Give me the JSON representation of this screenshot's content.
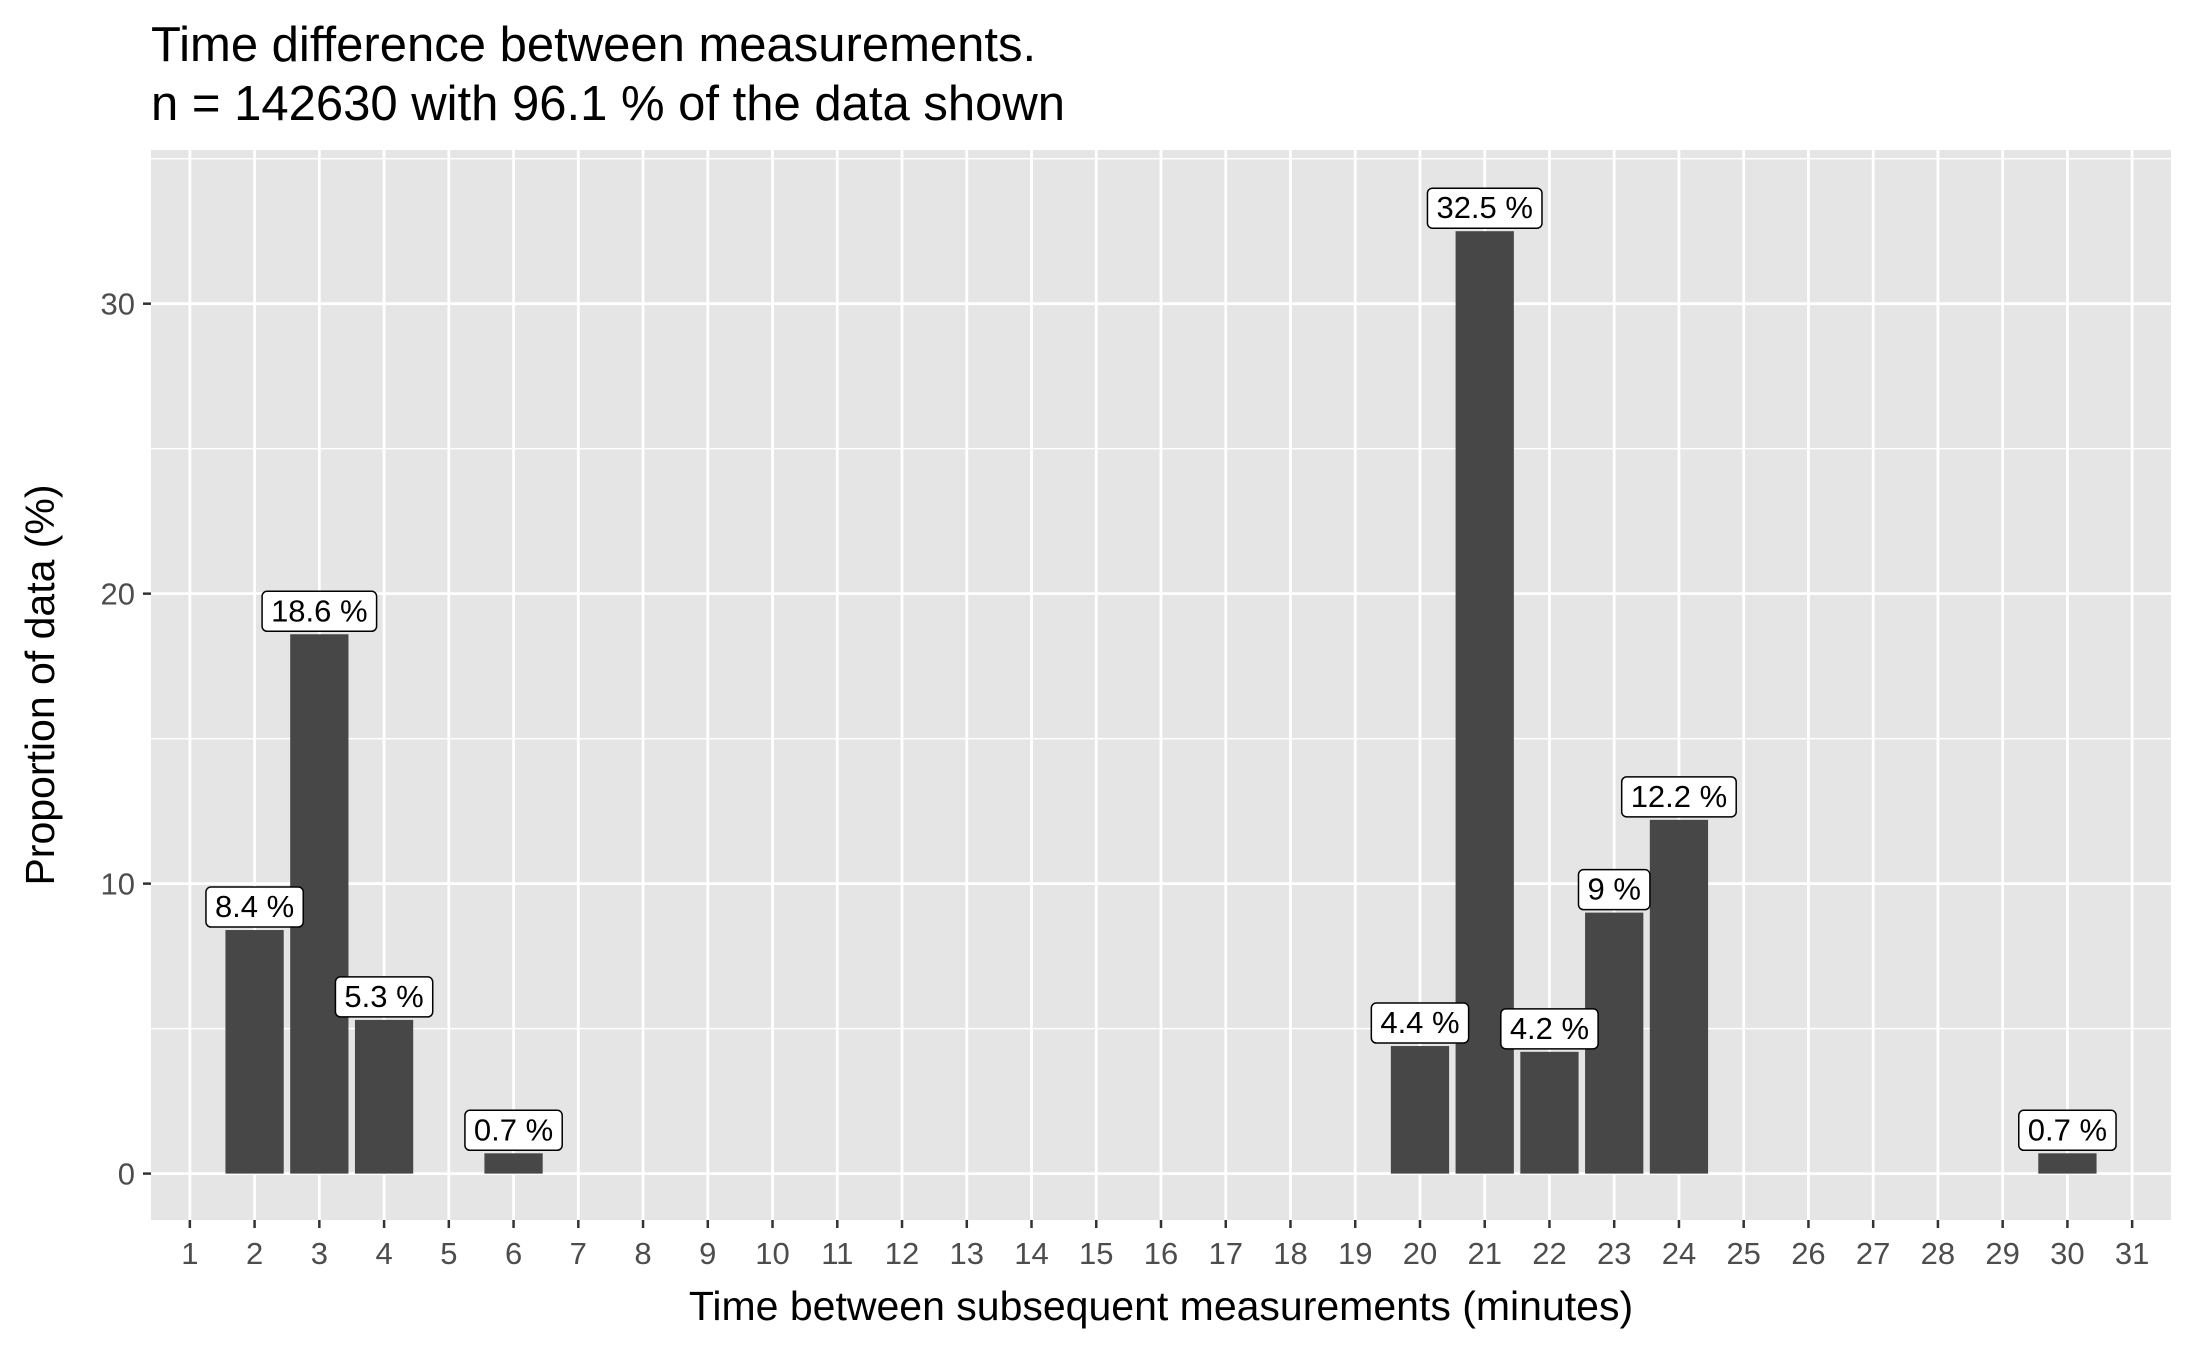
{
  "chart_data": {
    "type": "bar",
    "title": "Time difference between measurements.",
    "subtitle": "n =  142630 with 96.1 % of the data shown",
    "xlabel": "Time between subsequent measurements (minutes)",
    "ylabel": "Proportion of data (%)",
    "categories": [
      "1",
      "2",
      "3",
      "4",
      "5",
      "6",
      "7",
      "8",
      "9",
      "10",
      "11",
      "12",
      "13",
      "14",
      "15",
      "16",
      "17",
      "18",
      "19",
      "20",
      "21",
      "22",
      "23",
      "24",
      "25",
      "26",
      "27",
      "28",
      "29",
      "30",
      "31"
    ],
    "values": [
      0,
      8.4,
      18.6,
      5.3,
      0,
      0.7,
      0,
      0,
      0,
      0,
      0,
      0,
      0,
      0,
      0,
      0,
      0,
      0,
      0,
      4.4,
      32.5,
      4.2,
      9,
      12.2,
      0,
      0,
      0,
      0,
      0,
      0.7,
      0
    ],
    "data_labels": [
      "",
      "8.4 %",
      "18.6 %",
      "5.3 %",
      "",
      "0.7 %",
      "",
      "",
      "",
      "",
      "",
      "",
      "",
      "",
      "",
      "",
      "",
      "",
      "",
      "4.4 %",
      "32.5 %",
      "4.2 %",
      "9 %",
      "12.2 %",
      "",
      "",
      "",
      "",
      "",
      "0.7 %",
      ""
    ],
    "yticks": [
      0,
      10,
      20,
      30
    ],
    "ylim": [
      -1.6,
      35.3
    ],
    "grid": true,
    "legend": "none",
    "colors": {
      "bar": "#474747",
      "panel": "#e5e5e5",
      "grid": "#ffffff",
      "label_fill": "#ffffff",
      "label_border": "#000000"
    }
  }
}
